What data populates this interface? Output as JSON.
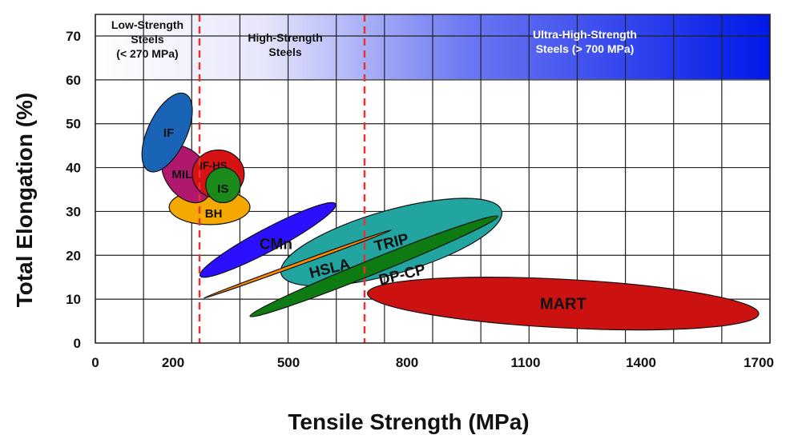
{
  "chart_data": {
    "type": "scatter",
    "title": "",
    "xlabel": "Tensile Strength (MPa)",
    "ylabel": "Total Elongation (%)",
    "xlim": [
      0,
      1700
    ],
    "ylim": [
      0,
      70
    ],
    "x_ticks": [
      "0",
      "200",
      "500",
      "800",
      "1100",
      "1400",
      "1700"
    ],
    "y_ticks": [
      "0",
      "10",
      "20",
      "30",
      "40",
      "50",
      "60",
      "70"
    ],
    "grid": true,
    "regions": [
      {
        "lines": [
          "Low-Strength",
          "Steels",
          "(< 270 MPa)"
        ],
        "text_color": "#111111"
      },
      {
        "lines": [
          "High-Strength",
          "Steels"
        ],
        "text_color": "#111111"
      },
      {
        "lines": [
          "Ultra-High-Strength",
          "Steels (> 700 MPa)"
        ],
        "text_color": "#ffffff"
      }
    ],
    "boundaries_mpa": [
      270,
      700
    ],
    "steel_families": [
      {
        "name": "MART",
        "tensile_range_mpa": [
          700,
          1700
        ],
        "elongation_range_pct": [
          3,
          15
        ],
        "color": "#cc1111"
      },
      {
        "name": "TRIP",
        "tensile_range_mpa": [
          480,
          1040
        ],
        "elongation_range_pct": [
          13,
          33
        ],
        "color": "#22a5a0"
      },
      {
        "name": "DP-CP",
        "tensile_range_mpa": [
          400,
          1030
        ],
        "elongation_range_pct": [
          6,
          29
        ],
        "color": "#0e7a12"
      },
      {
        "name": "HSLA",
        "tensile_range_mpa": [
          280,
          760
        ],
        "elongation_range_pct": [
          11,
          25
        ],
        "color": "#ff8a00"
      },
      {
        "name": "CMn",
        "tensile_range_mpa": [
          270,
          620
        ],
        "elongation_range_pct": [
          15,
          32
        ],
        "color": "#2a10ff"
      },
      {
        "name": "BH",
        "tensile_range_mpa": [
          190,
          400
        ],
        "elongation_range_pct": [
          27,
          35
        ],
        "color": "#f5a800"
      },
      {
        "name": "MILD",
        "tensile_range_mpa": [
          170,
          300
        ],
        "elongation_range_pct": [
          32,
          45
        ],
        "color": "#b0186e"
      },
      {
        "name": "IF-HS",
        "tensile_range_mpa": [
          250,
          385
        ],
        "elongation_range_pct": [
          33,
          44
        ],
        "color": "#d71212"
      },
      {
        "name": "IS",
        "tensile_range_mpa": [
          285,
          375
        ],
        "elongation_range_pct": [
          32,
          40
        ],
        "color": "#1a8a1a"
      },
      {
        "name": "IF",
        "tensile_range_mpa": [
          120,
          250
        ],
        "elongation_range_pct": [
          39,
          57
        ],
        "color": "#1a64b8"
      }
    ],
    "colors": {
      "grid": "#222222",
      "boundary": "#e53333",
      "band_start": "#ffffff",
      "band_end": "#0019e8"
    }
  }
}
